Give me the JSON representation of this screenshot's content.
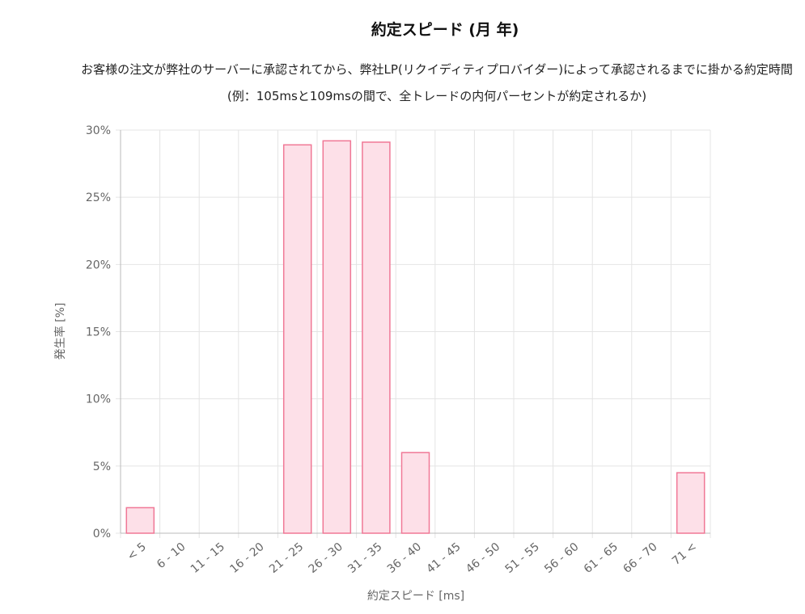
{
  "chart_data": {
    "type": "bar",
    "title": "約定スピード (月 年)",
    "subtitle": "お客様の注文が弊社のサーバーに承認されてから、弊社LP(リクイディティプロバイダー)によって承認されるまでに掛かる約定時間 (例：105msと109msの間で、全トレードの内何パーセントが約定されるか)",
    "xlabel": "約定スピード [ms]",
    "ylabel": "発生率 [%]",
    "categories": [
      "< 5",
      "6 - 10",
      "11 - 15",
      "16 - 20",
      "21 - 25",
      "26 - 30",
      "31 - 35",
      "36 - 40",
      "41 - 45",
      "46 - 50",
      "51 - 55",
      "56 - 60",
      "61 - 65",
      "66 - 70",
      "71 <"
    ],
    "values": [
      1.9,
      0,
      0,
      0,
      28.9,
      29.2,
      29.1,
      6.0,
      0,
      0,
      0,
      0,
      0,
      0,
      4.5
    ],
    "ylim": [
      0,
      30
    ],
    "yticks": [
      "0%",
      "5%",
      "10%",
      "15%",
      "20%",
      "25%",
      "30%"
    ],
    "grid": true,
    "colors": {
      "bar_fill": "#fde0e8",
      "bar_stroke": "#f07896"
    }
  }
}
